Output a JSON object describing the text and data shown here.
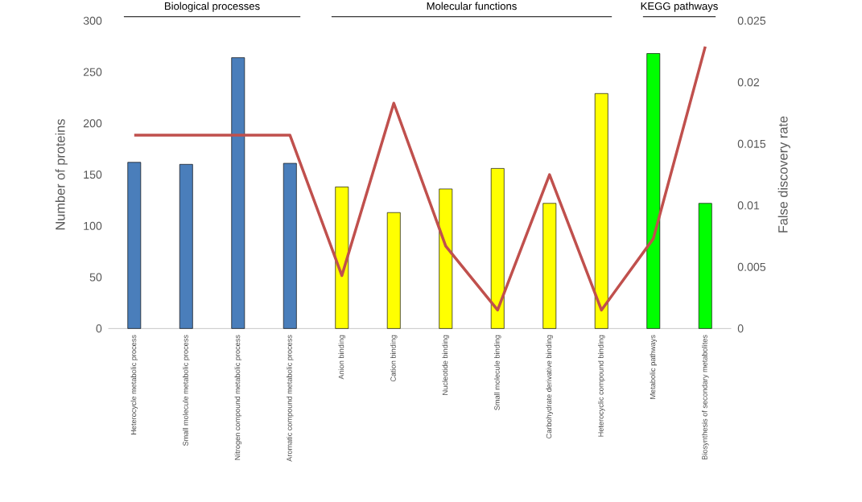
{
  "chart_data": {
    "type": "bar",
    "ylabel": "Number of proteins",
    "y2label": "False discovery rate",
    "categories": [
      "Heterocycle metabolic process",
      "Small molecule metabolic process",
      "Nitrogen compound metabolic process",
      "Aromatic compound metabolic process",
      "Anion binding",
      "Cation binding",
      "Nucleotide binding",
      "Small molecule binding",
      "Carbohydrate derivative binding",
      "Heterocyclic compound binding",
      "Metabolic pathways",
      "Biosynthesis of secondary metabolites"
    ],
    "series": [
      {
        "colors": [
          "#4a7ebb",
          "#4a7ebb",
          "#4a7ebb",
          "#4a7ebb",
          "#ffff00",
          "#ffff00",
          "#ffff00",
          "#ffff00",
          "#ffff00",
          "#ffff00",
          "#00ff00",
          "#00ff00"
        ],
        "values": [
          162,
          160,
          264,
          161,
          138,
          113,
          136,
          156,
          122,
          229,
          268,
          122
        ]
      },
      {
        "type": "line",
        "axis": "y2",
        "color": "#c0504d",
        "values": [
          0.0157,
          0.0157,
          0.0157,
          0.0157,
          0.0043,
          0.0183,
          0.0067,
          0.0015,
          0.0125,
          0.0015,
          0.0073,
          0.0229
        ]
      }
    ],
    "ylim": [
      0,
      300
    ],
    "yticks": [
      0,
      50,
      100,
      150,
      200,
      250,
      300
    ],
    "y2lim": [
      0,
      0.025
    ],
    "y2ticks": [
      0,
      0.005,
      0.01,
      0.015,
      0.02,
      0.025
    ],
    "annotations": [
      "Biological processes",
      "Molecular functions",
      "KEGG pathways"
    ],
    "grid": false
  }
}
